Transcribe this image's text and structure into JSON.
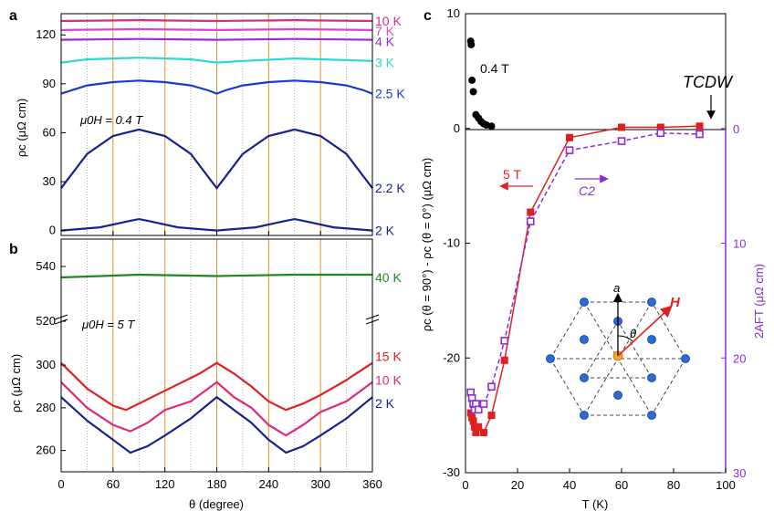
{
  "panel_labels": {
    "a": "a",
    "b": "b",
    "c": "c"
  },
  "chart_data": [
    {
      "panel": "a",
      "type": "line",
      "title": "",
      "xlabel": "θ (degree)",
      "ylabel": "ρc (μΩ cm)",
      "xlim": [
        0,
        360
      ],
      "ylim": [
        -3,
        133
      ],
      "yticks": [
        0,
        30,
        60,
        90,
        120
      ],
      "annotation": "μ0H = 0.4 T",
      "vlines_orange": [
        60,
        120,
        180,
        240,
        300
      ],
      "vlines_dotted": [
        30,
        90,
        150,
        210,
        270,
        330
      ],
      "series": [
        {
          "name": "10 K",
          "color": "#e0287e",
          "values": [
            [
              0,
              128.5
            ],
            [
              90,
              129
            ],
            [
              180,
              128.5
            ],
            [
              270,
              129
            ],
            [
              360,
              128.5
            ]
          ]
        },
        {
          "name": "7 K",
          "color": "#d946c8",
          "values": [
            [
              0,
              123
            ],
            [
              90,
              123.5
            ],
            [
              180,
              123
            ],
            [
              270,
              123.5
            ],
            [
              360,
              123
            ]
          ]
        },
        {
          "name": "4 K",
          "color": "#9a2ae6",
          "values": [
            [
              0,
              117
            ],
            [
              90,
              117.5
            ],
            [
              180,
              117
            ],
            [
              270,
              117.5
            ],
            [
              360,
              117
            ]
          ]
        },
        {
          "name": "3 K",
          "color": "#2fd6d6",
          "values": [
            [
              0,
              103
            ],
            [
              30,
              105
            ],
            [
              90,
              106
            ],
            [
              150,
              105
            ],
            [
              180,
              103
            ],
            [
              210,
              104
            ],
            [
              270,
              105.5
            ],
            [
              330,
              104.5
            ],
            [
              360,
              104
            ]
          ]
        },
        {
          "name": "2.5 K",
          "color": "#1a3ad0",
          "values": [
            [
              0,
              84
            ],
            [
              30,
              89
            ],
            [
              60,
              91
            ],
            [
              90,
              92
            ],
            [
              120,
              91
            ],
            [
              150,
              89
            ],
            [
              170,
              86
            ],
            [
              180,
              84
            ],
            [
              190,
              86
            ],
            [
              210,
              89
            ],
            [
              240,
              91
            ],
            [
              270,
              92
            ],
            [
              300,
              91
            ],
            [
              330,
              89
            ],
            [
              350,
              86
            ],
            [
              360,
              84
            ]
          ]
        },
        {
          "name": "2.2 K",
          "color": "#172390",
          "values": [
            [
              0,
              26
            ],
            [
              30,
              47
            ],
            [
              60,
              58
            ],
            [
              90,
              62
            ],
            [
              120,
              58
            ],
            [
              150,
              47
            ],
            [
              170,
              33
            ],
            [
              180,
              26
            ],
            [
              190,
              33
            ],
            [
              210,
              47
            ],
            [
              240,
              58
            ],
            [
              270,
              62
            ],
            [
              300,
              58
            ],
            [
              330,
              47
            ],
            [
              350,
              33
            ],
            [
              360,
              26
            ]
          ]
        },
        {
          "name": "2 K",
          "color": "#172390",
          "values": [
            [
              0,
              0
            ],
            [
              45,
              2
            ],
            [
              80,
              6
            ],
            [
              90,
              7
            ],
            [
              100,
              6
            ],
            [
              135,
              2
            ],
            [
              180,
              0
            ],
            [
              225,
              2
            ],
            [
              260,
              6
            ],
            [
              270,
              7
            ],
            [
              280,
              6
            ],
            [
              315,
              2
            ],
            [
              360,
              0
            ]
          ]
        }
      ]
    },
    {
      "panel": "b",
      "type": "line",
      "title": "",
      "xlabel": "θ (degree)",
      "ylabel": "ρc (μΩ cm)",
      "xlim": [
        0,
        360
      ],
      "ylim_upper": [
        520,
        550
      ],
      "ylim_lower": [
        250,
        315
      ],
      "yticks": [
        260,
        280,
        300,
        520,
        540
      ],
      "xticks": [
        0,
        60,
        120,
        180,
        240,
        300,
        360
      ],
      "annotation": "μ0H = 5 T",
      "series": [
        {
          "name": "40 K",
          "color": "#1e8a1e",
          "values": [
            [
              0,
              536
            ],
            [
              90,
              537
            ],
            [
              180,
              536.5
            ],
            [
              270,
              537
            ],
            [
              360,
              537
            ]
          ]
        },
        {
          "name": "15 K",
          "color": "#e02020",
          "values": [
            [
              0,
              301
            ],
            [
              30,
              289
            ],
            [
              60,
              281
            ],
            [
              75,
              279
            ],
            [
              90,
              282
            ],
            [
              110,
              286
            ],
            [
              140,
              292
            ],
            [
              160,
              296
            ],
            [
              180,
              301
            ],
            [
              200,
              296
            ],
            [
              220,
              290
            ],
            [
              240,
              283
            ],
            [
              260,
              279
            ],
            [
              280,
              282
            ],
            [
              300,
              286
            ],
            [
              330,
              293
            ],
            [
              360,
              301
            ]
          ]
        },
        {
          "name": "10 K",
          "color": "#e0287e",
          "values": [
            [
              0,
              292
            ],
            [
              30,
              280
            ],
            [
              60,
              272
            ],
            [
              80,
              269
            ],
            [
              100,
              273
            ],
            [
              120,
              279
            ],
            [
              150,
              283
            ],
            [
              180,
              292
            ],
            [
              200,
              285
            ],
            [
              220,
              280
            ],
            [
              240,
              272
            ],
            [
              260,
              267
            ],
            [
              280,
              272
            ],
            [
              300,
              278
            ],
            [
              330,
              283
            ],
            [
              360,
              292
            ]
          ]
        },
        {
          "name": "2 K",
          "color": "#172390",
          "values": [
            [
              0,
              285
            ],
            [
              30,
              274
            ],
            [
              60,
              265
            ],
            [
              80,
              259
            ],
            [
              100,
              262
            ],
            [
              120,
              267
            ],
            [
              150,
              275
            ],
            [
              180,
              285
            ],
            [
              200,
              279
            ],
            [
              220,
              273
            ],
            [
              240,
              265
            ],
            [
              260,
              259
            ],
            [
              280,
              262
            ],
            [
              300,
              267
            ],
            [
              330,
              275
            ],
            [
              360,
              285
            ]
          ]
        }
      ]
    },
    {
      "panel": "c",
      "type": "scatter",
      "title": "",
      "xlabel": "T (K)",
      "ylabel": "ρc (θ = 90°) - ρc (θ = 0°) (μΩ cm)",
      "ylabel_right": "2AFT (μΩ cm)",
      "xlim": [
        0,
        100
      ],
      "ylim": [
        -30,
        10
      ],
      "ylim_right": [
        30,
        -10
      ],
      "xticks": [
        0,
        20,
        40,
        60,
        80,
        100
      ],
      "yticks": [
        -30,
        -20,
        -10,
        0,
        10
      ],
      "yticks_right": [
        0,
        10,
        20,
        30
      ],
      "annotations": [
        "0.4 T",
        "5 T",
        "C2",
        "TCDW"
      ],
      "series": [
        {
          "name": "0.4 T",
          "color": "#000000",
          "marker": "circle",
          "x": [
            2,
            2.2,
            2.5,
            3,
            4,
            5,
            6,
            7,
            8,
            10
          ],
          "y": [
            7.6,
            7.3,
            4.2,
            3.2,
            1.2,
            0.9,
            0.6,
            0.4,
            0.3,
            0.2
          ]
        },
        {
          "name": "5 T",
          "color": "#e02020",
          "marker": "square-filled",
          "x": [
            2,
            2.5,
            3,
            3.5,
            4,
            5,
            7,
            10,
            15,
            25,
            40,
            60,
            75,
            90
          ],
          "y": [
            -24.8,
            -25.2,
            -25.5,
            -26,
            -26.5,
            -26,
            -26.5,
            -25,
            -20.2,
            -7.3,
            -0.8,
            0.1,
            0.1,
            0.2
          ]
        },
        {
          "name": "2AFT",
          "color": "#8a2be2",
          "marker": "square-open",
          "x": [
            2,
            2.5,
            3,
            3.5,
            4,
            5,
            7,
            10,
            15,
            25,
            40,
            60,
            75,
            90
          ],
          "y": [
            23,
            23.5,
            24,
            24.5,
            24,
            24.5,
            24,
            22.5,
            18.5,
            8.1,
            1.9,
            1.1,
            0.4,
            0.5
          ]
        }
      ]
    }
  ],
  "inset": {
    "label_a": "a",
    "label_H": "H",
    "label_theta": "θ"
  }
}
